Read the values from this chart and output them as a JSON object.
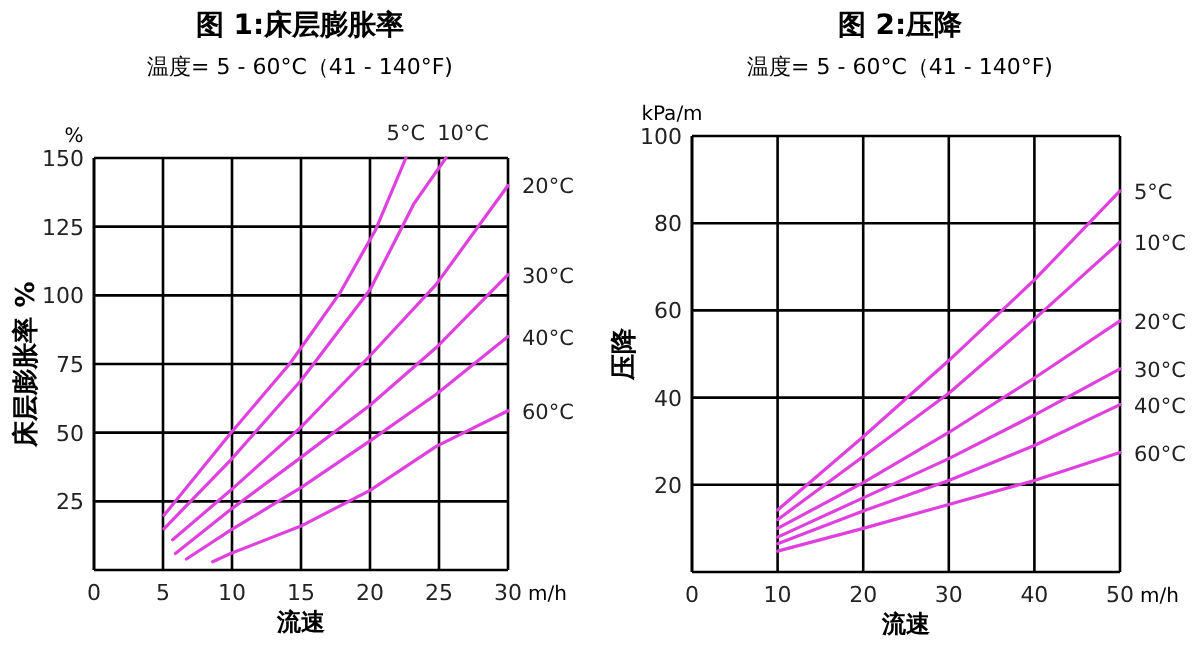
{
  "chart_data": [
    {
      "type": "line",
      "title": "图 1:床层膨胀率",
      "subtitle": "温度= 5 - 60°C（41 - 140°F)",
      "xlabel": "流速",
      "ylabel": "床层膨胀率 %",
      "annotations": [
        "%",
        "m/h"
      ],
      "xlim": [
        0,
        30
      ],
      "ylim": [
        0,
        150
      ],
      "xticks": [
        0,
        5,
        10,
        15,
        20,
        25,
        30
      ],
      "yticks": [
        25,
        50,
        75,
        100,
        125,
        150
      ],
      "grid": true,
      "marker": "none",
      "line_style": "solid",
      "series": [
        {
          "name": "5°C",
          "color": "#e040e0",
          "x": [
            5.07,
            9.9,
            14.2,
            17.8,
            20.4,
            22.6
          ],
          "values": [
            19.9,
            49.8,
            75.2,
            100.7,
            123.8,
            150
          ]
        },
        {
          "name": "10°C",
          "color": "#e040e0",
          "x": [
            5.07,
            9.9,
            15,
            20,
            23.2,
            25.5
          ],
          "values": [
            15,
            40,
            69,
            102,
            133.5,
            150
          ]
        },
        {
          "name": "20°C",
          "color": "#e040e0",
          "x": [
            5.7,
            9.9,
            15,
            20,
            24.8,
            30
          ],
          "values": [
            11,
            29,
            52,
            78,
            104,
            140
          ]
        },
        {
          "name": "30°C",
          "color": "#e040e0",
          "x": [
            5.9,
            9.9,
            15,
            20,
            24.8,
            30
          ],
          "values": [
            6,
            22,
            41,
            60,
            81,
            107.5
          ]
        },
        {
          "name": "40°C",
          "color": "#e040e0",
          "x": [
            6.7,
            9.9,
            15,
            20,
            24.8,
            30
          ],
          "values": [
            4,
            14.5,
            30,
            47,
            64,
            85
          ]
        },
        {
          "name": "60°C",
          "color": "#e040e0",
          "x": [
            8.6,
            9.9,
            15,
            20,
            24.8,
            30
          ],
          "values": [
            3,
            6,
            16,
            29,
            45,
            58
          ]
        }
      ]
    },
    {
      "type": "line",
      "title": "图 2:压降",
      "subtitle": "温度= 5 - 60°C（41 - 140°F)",
      "xlabel": "流速",
      "ylabel": "压降",
      "annotations": [
        "kPa/m",
        "m/h"
      ],
      "xlim": [
        0,
        50
      ],
      "ylim": [
        0,
        100
      ],
      "xticks": [
        0,
        10,
        20,
        30,
        40,
        50
      ],
      "yticks": [
        20,
        40,
        60,
        80,
        100
      ],
      "grid": true,
      "marker": "none",
      "line_style": "solid",
      "series": [
        {
          "name": "5°C",
          "color": "#e040e0",
          "x": [
            10,
            20,
            30,
            40,
            50
          ],
          "values": [
            14.2,
            31,
            48.5,
            67,
            87.4
          ]
        },
        {
          "name": "10°C",
          "color": "#e040e0",
          "x": [
            10,
            20,
            30,
            40,
            50
          ],
          "values": [
            12,
            26.5,
            41,
            58,
            75.7
          ]
        },
        {
          "name": "20°C",
          "color": "#e040e0",
          "x": [
            10,
            20,
            30,
            40,
            50
          ],
          "values": [
            10,
            20.5,
            32,
            44.5,
            57.6
          ]
        },
        {
          "name": "30°C",
          "color": "#e040e0",
          "x": [
            10,
            20,
            30,
            40,
            50
          ],
          "values": [
            8,
            17,
            26,
            36,
            46.6
          ]
        },
        {
          "name": "40°C",
          "color": "#e040e0",
          "x": [
            10,
            20,
            30,
            40,
            50
          ],
          "values": [
            6.5,
            14,
            21,
            29,
            38.4
          ]
        },
        {
          "name": "60°C",
          "color": "#e040e0",
          "x": [
            10,
            20,
            30,
            40,
            50
          ],
          "values": [
            4.8,
            10,
            15.5,
            21,
            27.4
          ]
        }
      ]
    }
  ]
}
